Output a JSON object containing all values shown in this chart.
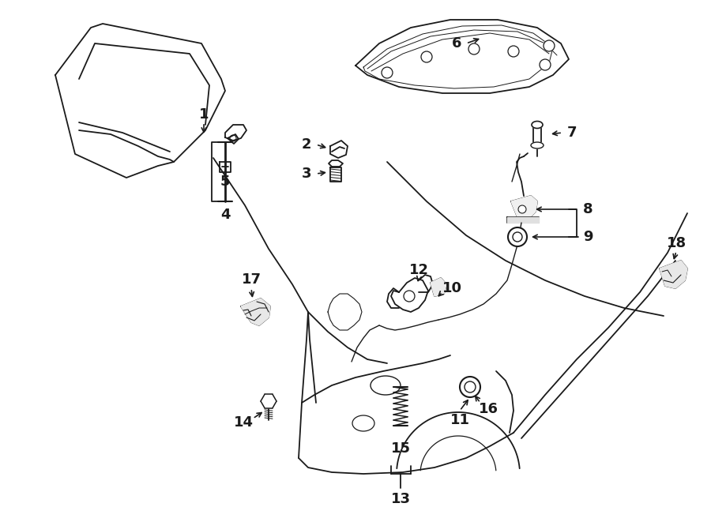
{
  "bg_color": "#ffffff",
  "line_color": "#1a1a1a",
  "figsize": [
    9.0,
    6.61
  ],
  "dpi": 100,
  "label_fs": 13,
  "lw": 1.3
}
